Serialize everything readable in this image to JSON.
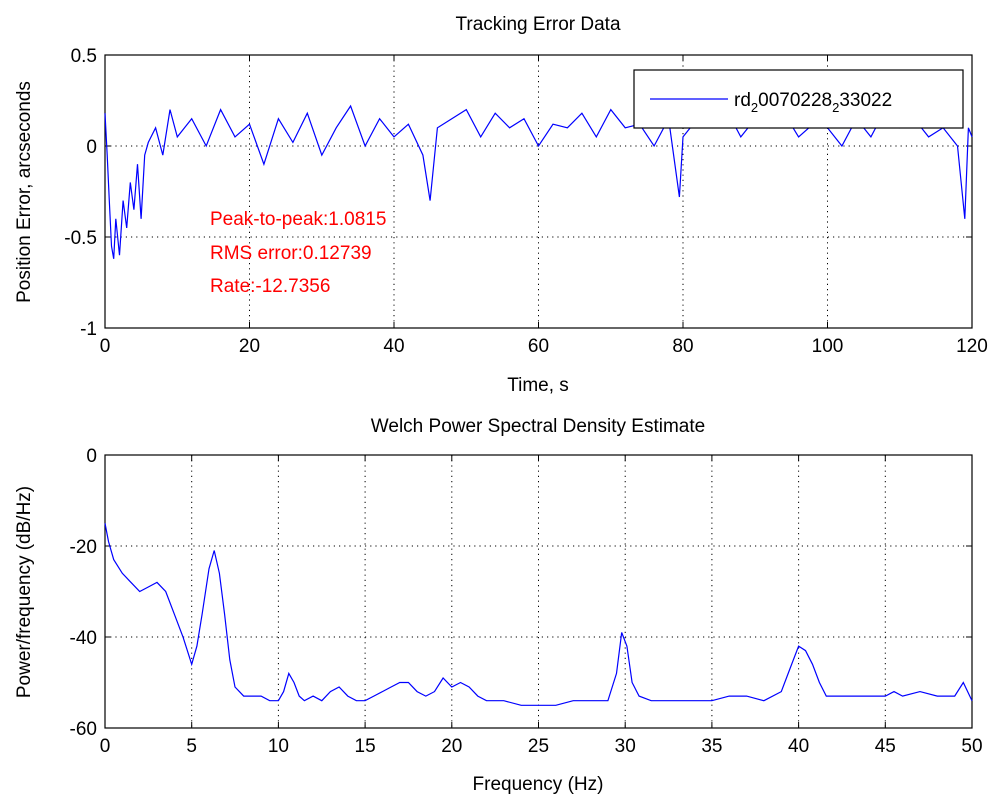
{
  "chart_data": [
    {
      "type": "line",
      "title": "Tracking Error Data",
      "xlabel": "Time, s",
      "ylabel": "Position Error, arcseconds",
      "xlim": [
        0,
        120
      ],
      "ylim": [
        -1,
        0.5
      ],
      "xticks": [
        0,
        20,
        40,
        60,
        80,
        100,
        120
      ],
      "yticks": [
        -1,
        -0.5,
        0,
        0.5
      ],
      "xtick_labels": [
        "0",
        "20",
        "40",
        "60",
        "80",
        "100",
        "120"
      ],
      "ytick_labels": [
        "-1",
        "-0.5",
        "0",
        "0.5"
      ],
      "grid": true,
      "legend": {
        "position": "top-right",
        "prefix": "rd",
        "sub1": "2",
        "middle": "0070228",
        "sub2": "2",
        "suffix": "33022"
      },
      "annotations": [
        "Peak-to-peak:1.0815",
        "RMS error:0.12739",
        "Rate:-12.7356"
      ],
      "color": "#0000ff",
      "series": [
        {
          "x": [
            0,
            0.3,
            0.6,
            0.9,
            1.2,
            1.5,
            2,
            2.5,
            3,
            3.5,
            4,
            4.5,
            5,
            5.5,
            6,
            7,
            8,
            9,
            10,
            12,
            14,
            16,
            18,
            20,
            22,
            24,
            26,
            28,
            30,
            32,
            34,
            36,
            38,
            40,
            42,
            44,
            45,
            46,
            48,
            50,
            52,
            54,
            56,
            58,
            60,
            62,
            64,
            66,
            68,
            70,
            72,
            74,
            76,
            78,
            79.5,
            80,
            82,
            84,
            86,
            88,
            90,
            92,
            94,
            96,
            98,
            100,
            102,
            104,
            106,
            108,
            110,
            112,
            114,
            116,
            118,
            119,
            119.5,
            120
          ],
          "y": [
            0.18,
            -0.05,
            -0.3,
            -0.55,
            -0.62,
            -0.4,
            -0.6,
            -0.3,
            -0.45,
            -0.2,
            -0.35,
            -0.1,
            -0.4,
            -0.05,
            0.02,
            0.1,
            -0.05,
            0.2,
            0.05,
            0.15,
            0.0,
            0.2,
            0.05,
            0.12,
            -0.1,
            0.15,
            0.02,
            0.18,
            -0.05,
            0.1,
            0.22,
            0.0,
            0.15,
            0.05,
            0.12,
            -0.05,
            -0.3,
            0.1,
            0.15,
            0.2,
            0.05,
            0.18,
            0.1,
            0.15,
            0.0,
            0.12,
            0.1,
            0.18,
            0.05,
            0.2,
            0.1,
            0.12,
            0.0,
            0.15,
            -0.28,
            0.05,
            0.15,
            0.1,
            0.2,
            0.05,
            0.15,
            0.1,
            0.18,
            0.05,
            0.12,
            0.1,
            0.0,
            0.15,
            0.05,
            0.2,
            0.1,
            0.15,
            0.05,
            0.1,
            0.0,
            -0.4,
            0.1,
            0.05
          ]
        }
      ]
    },
    {
      "type": "line",
      "title": "Welch Power Spectral Density Estimate",
      "xlabel": "Frequency (Hz)",
      "ylabel": "Power/frequency (dB/Hz)",
      "xlim": [
        0,
        50
      ],
      "ylim": [
        -60,
        0
      ],
      "xticks": [
        0,
        5,
        10,
        15,
        20,
        25,
        30,
        35,
        40,
        45,
        50
      ],
      "yticks": [
        -60,
        -40,
        -20,
        0
      ],
      "xtick_labels": [
        "0",
        "5",
        "10",
        "15",
        "20",
        "25",
        "30",
        "35",
        "40",
        "45",
        "50"
      ],
      "ytick_labels": [
        "-60",
        "-40",
        "-20",
        "0"
      ],
      "grid": true,
      "color": "#0000ff",
      "series": [
        {
          "x": [
            0,
            0.2,
            0.5,
            1,
            1.5,
            2,
            2.5,
            3,
            3.5,
            4,
            4.5,
            5,
            5.3,
            5.6,
            6,
            6.3,
            6.6,
            6.9,
            7.2,
            7.5,
            8,
            8.5,
            9,
            9.5,
            10,
            10.3,
            10.6,
            10.9,
            11.2,
            11.5,
            12,
            12.5,
            13,
            13.5,
            14,
            14.5,
            15,
            15.5,
            16,
            16.5,
            17,
            17.5,
            18,
            18.5,
            19,
            19.5,
            20,
            20.5,
            21,
            21.5,
            22,
            23,
            24,
            25,
            26,
            27,
            28,
            29,
            29.5,
            29.8,
            30.1,
            30.4,
            30.8,
            31.5,
            32,
            33,
            34,
            35,
            36,
            37,
            38,
            39,
            39.5,
            40,
            40.4,
            40.8,
            41.2,
            41.6,
            42,
            43,
            44,
            45,
            45.5,
            46,
            47,
            48,
            48.5,
            49,
            49.5,
            50
          ],
          "y": [
            -15,
            -19,
            -23,
            -26,
            -28,
            -30,
            -29,
            -28,
            -30,
            -35,
            -40,
            -46,
            -42,
            -35,
            -25,
            -21,
            -26,
            -35,
            -45,
            -51,
            -53,
            -53,
            -53,
            -54,
            -54,
            -52,
            -48,
            -50,
            -53,
            -54,
            -53,
            -54,
            -52,
            -51,
            -53,
            -54,
            -54,
            -53,
            -52,
            -51,
            -50,
            -50,
            -52,
            -53,
            -52,
            -49,
            -51,
            -50,
            -51,
            -53,
            -54,
            -54,
            -55,
            -55,
            -55,
            -54,
            -54,
            -54,
            -48,
            -39,
            -42,
            -50,
            -53,
            -54,
            -54,
            -54,
            -54,
            -54,
            -53,
            -53,
            -54,
            -52,
            -47,
            -42,
            -43,
            -46,
            -50,
            -53,
            -53,
            -53,
            -53,
            -53,
            -52,
            -53,
            -52,
            -53,
            -53,
            -53,
            -50,
            -54
          ]
        }
      ]
    }
  ]
}
